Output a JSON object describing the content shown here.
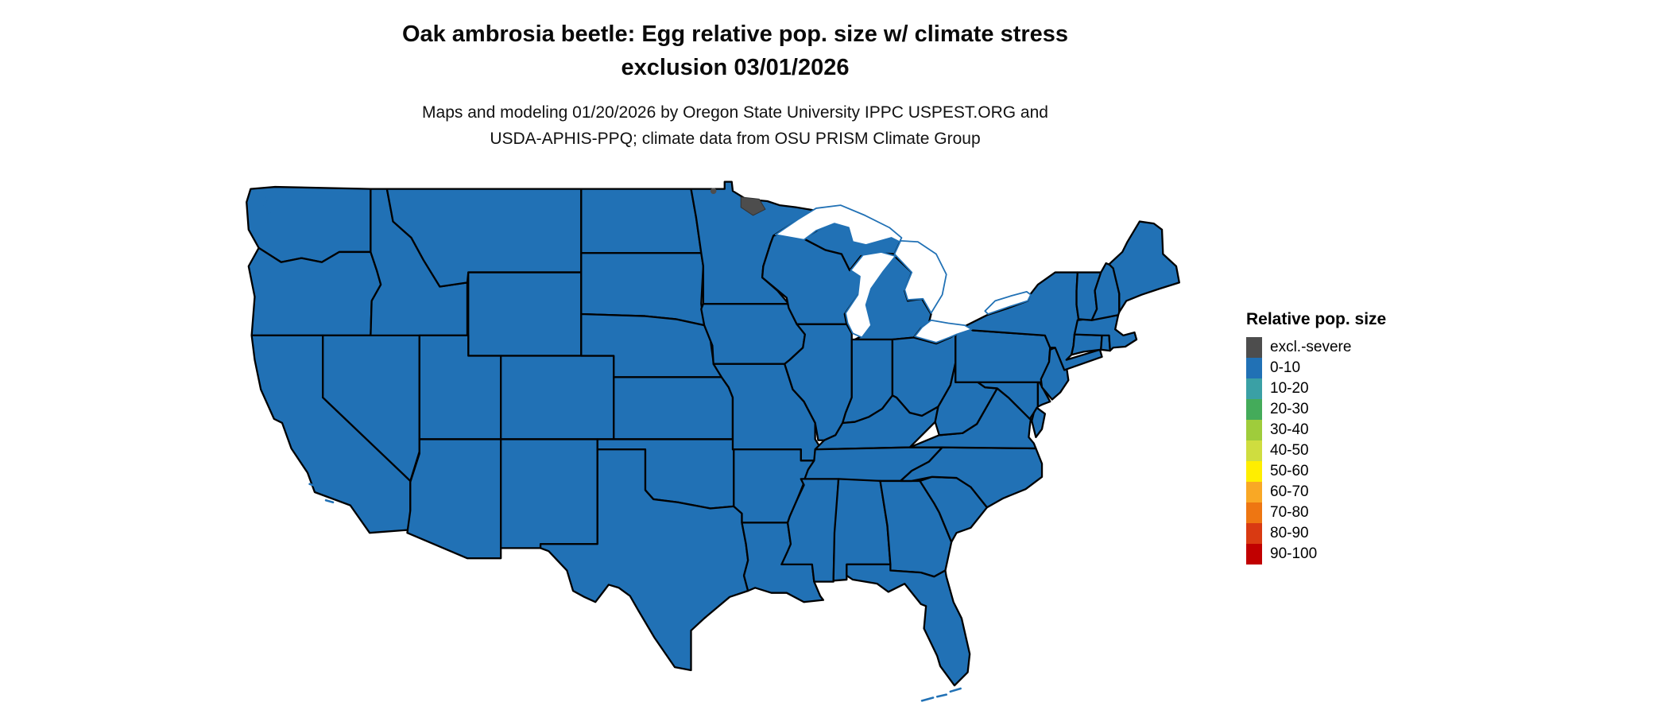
{
  "header": {
    "title_line1": "Oak ambrosia beetle: Egg relative pop. size w/ climate stress",
    "title_line2": "exclusion 03/01/2026",
    "subtitle_line1": "Maps and modeling 01/20/2026 by Oregon State University IPPC USPEST.ORG and",
    "subtitle_line2": "USDA-APHIS-PPQ; climate data from OSU PRISM Climate Group"
  },
  "legend": {
    "title": "Relative pop. size",
    "items": [
      {
        "label": "excl.-severe",
        "color": "#4d4d4d"
      },
      {
        "label": "0-10",
        "color": "#2171b5"
      },
      {
        "label": "10-20",
        "color": "#3aa0a5"
      },
      {
        "label": "20-30",
        "color": "#44ab5a"
      },
      {
        "label": "30-40",
        "color": "#9fcc3b"
      },
      {
        "label": "40-50",
        "color": "#cfdd3f"
      },
      {
        "label": "50-60",
        "color": "#ffee00"
      },
      {
        "label": "60-70",
        "color": "#f9a825"
      },
      {
        "label": "70-80",
        "color": "#ee7612"
      },
      {
        "label": "80-90",
        "color": "#d93a12"
      },
      {
        "label": "90-100",
        "color": "#c10000"
      }
    ]
  },
  "map": {
    "default_category": "0-10",
    "exclusion_category": "excl.-severe",
    "border_color": "#000000",
    "water_outline_color": "#2171b5",
    "background_color": "#ffffff"
  }
}
